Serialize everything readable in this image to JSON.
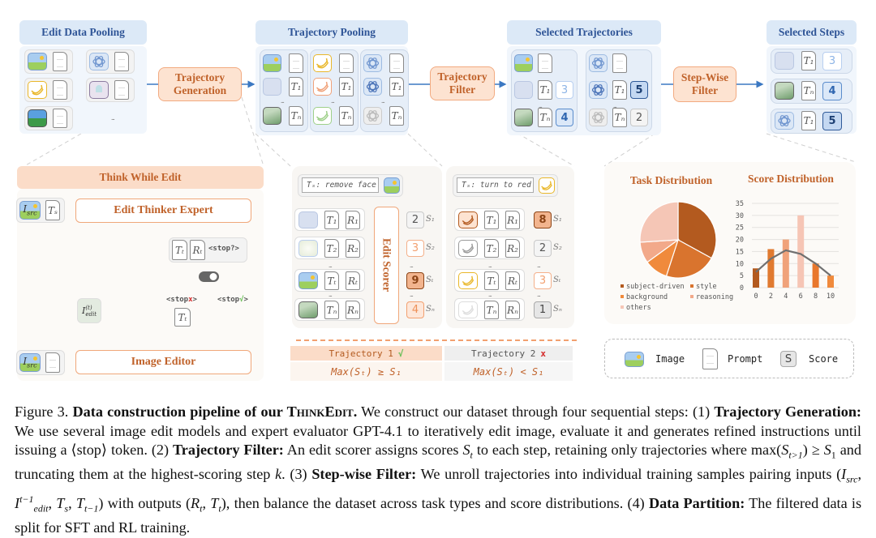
{
  "top": {
    "edit_data_pooling": {
      "title": "Edit Data Pooling",
      "ellipsis": "...",
      "items": [
        {
          "img": "landscape-face-icon",
          "doc": ""
        },
        {
          "img": "openai-icon",
          "doc": ""
        },
        {
          "img": "banana-yellow-icon",
          "doc": ""
        },
        {
          "img": "poster-icon",
          "doc": ""
        },
        {
          "img": "mountain-photo-icon",
          "doc": ""
        }
      ]
    },
    "trajectory_generation": "Trajectory Generation",
    "trajectory_pooling": {
      "title": "Trajectory Pooling",
      "ellipsis": "...",
      "columns": [
        {
          "imgs": [
            "landscape-face-icon",
            "landscape-faded-icon",
            "landscape-green-icon"
          ],
          "docs": [
            "",
            "T₁",
            "Tₙ"
          ]
        },
        {
          "imgs": [
            "banana-yellow-icon",
            "banana-orange-icon",
            "banana-green-icon"
          ],
          "docs": [
            "",
            "T₁",
            "Tₙ"
          ]
        },
        {
          "imgs": [
            "openai-icon",
            "openai-dark-icon",
            "openai-gray-icon"
          ],
          "docs": [
            "",
            "T₁",
            "Tₙ"
          ]
        }
      ]
    },
    "trajectory_filter": "Trajectory Filter",
    "selected_trajectories": {
      "title": "Selected Trajectories",
      "ellipsis": "...",
      "columns": [
        {
          "imgs": [
            "landscape-face-icon",
            "landscape-faded-icon",
            "landscape-green-icon"
          ],
          "docs": [
            "",
            "T₁",
            "Tₙ"
          ],
          "scores": [
            "",
            "3",
            "4"
          ],
          "styles": [
            "",
            "light",
            "medium"
          ]
        },
        {
          "imgs": [
            "openai-icon",
            "openai-dark-icon",
            "openai-gray-icon"
          ],
          "docs": [
            "",
            "T₁",
            "Tₙ"
          ],
          "scores": [
            "",
            "5",
            "2"
          ],
          "styles": [
            "",
            "dark",
            "gray"
          ]
        }
      ]
    },
    "step_wise_filter": "Step-Wise Filter",
    "selected_steps": {
      "title": "Selected Steps",
      "rows": [
        {
          "img": "landscape-faded-icon",
          "doc": "T₁",
          "score": "3",
          "style": "light"
        },
        {
          "img": "landscape-green-icon",
          "doc": "Tₙ",
          "score": "4",
          "style": "medium"
        },
        {
          "img": "openai-icon",
          "doc": "T₁",
          "score": "5",
          "style": "dark"
        }
      ]
    }
  },
  "think_while_edit": {
    "title": "Think While Edit",
    "expert": "Edit Thinker Expert",
    "editor": "Image Editor",
    "src": {
      "main": "I",
      "sub": "src"
    },
    "ts": "Tₛ",
    "tt": "Tₜ",
    "rt": "Rₜ",
    "stop_q": "<stop?>",
    "stop_no": {
      "pre": "<stop",
      "mark": "x",
      "post": ">"
    },
    "stop_yes": {
      "pre": "<stop",
      "mark": "√",
      "post": ">"
    },
    "iedit": {
      "main": "I",
      "sup": "(t)",
      "sub": "edit"
    }
  },
  "scorer": {
    "label": "Edit Scorer",
    "ellipsis": "...",
    "trajectories": [
      {
        "instruction": "Tₛ: remove face",
        "input_img": "landscape-face-icon",
        "imgs": [
          "landscape-faded-icon",
          "landscape-white-icon",
          "landscape-face-icon",
          "landscape-green-icon"
        ],
        "docs": [
          [
            "T₁",
            "R₁"
          ],
          [
            "T₂",
            "R₂"
          ],
          [
            "Tₜ",
            "Rₜ"
          ],
          [
            "Tₙ",
            "Rₙ"
          ]
        ],
        "scores": [
          "2",
          "3",
          "9",
          "4"
        ],
        "styles": [
          "gray",
          "lo",
          "do",
          "o"
        ],
        "score_labels": [
          "S₁",
          "S₂",
          "Sₜ",
          "Sₙ"
        ],
        "result": {
          "label": "Trajectory 1",
          "mark": "√",
          "mark_color": "#6cbf5a",
          "formula": "Max(Sₜ) ≥ S₁"
        }
      },
      {
        "instruction": "Tₛ: turn to red",
        "input_img": "banana-yellow-icon",
        "imgs": [
          "banana-dark-orange-icon",
          "banana-gray-icon",
          "banana-yellow-icon",
          "banana-faded-icon"
        ],
        "docs": [
          [
            "T₁",
            "R₁"
          ],
          [
            "T₂",
            "R₂"
          ],
          [
            "Tₜ",
            "Rₜ"
          ],
          [
            "Tₙ",
            "Rₙ"
          ]
        ],
        "scores": [
          "8",
          "2",
          "3",
          "1"
        ],
        "styles": [
          "do",
          "gray",
          "lo",
          "gd"
        ],
        "score_labels": [
          "S₁",
          "S₂",
          "Sₜ",
          "Sₙ"
        ],
        "result": {
          "label": "Trajectory 2",
          "mark": "x",
          "mark_color": "#d42a2a",
          "formula": "Max(Sₜ) < S₁"
        }
      }
    ]
  },
  "chart_data": [
    {
      "type": "pie",
      "title": "Task Distribution",
      "categories": [
        "subject-driven",
        "style",
        "background",
        "reasoning",
        "others"
      ],
      "values": [
        33,
        22,
        10,
        9,
        26
      ],
      "colors": [
        "#b35a1f",
        "#d9742e",
        "#f08a3c",
        "#f2a98a",
        "#f5c6b6"
      ],
      "legend": "bottom"
    },
    {
      "type": "bar",
      "title": "Score Distribution",
      "categories": [
        "0",
        "2",
        "4",
        "6",
        "8",
        "10"
      ],
      "values": [
        8,
        16,
        20,
        30,
        10,
        5
      ],
      "colors": [
        "#b35a1f",
        "#e07a30",
        "#f0a27a",
        "#f6c5b5",
        "#e9782d",
        "#f08a3c"
      ],
      "trend_line": [
        6.5,
        12,
        15.5,
        14,
        10,
        5
      ],
      "trend_color": "#707070",
      "yticks": [
        0,
        5,
        10,
        15,
        20,
        25,
        30,
        35
      ],
      "ylim": [
        0,
        35
      ],
      "grid": true
    }
  ],
  "legend": {
    "items": [
      {
        "icon": "image-icon",
        "label": "Image"
      },
      {
        "icon": "prompt-icon",
        "label": "Prompt"
      },
      {
        "icon": "score-icon",
        "symbol": "S",
        "label": "Score"
      }
    ]
  },
  "caption": [
    {
      "t": "Figure 3. "
    },
    {
      "t": "Data construction pipeline of our ",
      "b": true
    },
    {
      "t": "ThinkEdit",
      "b": true,
      "caps": true
    },
    {
      "t": ".",
      "b": true
    },
    {
      "t": " We construct our dataset through four sequential steps: (1) "
    },
    {
      "t": "Trajectory Generation:",
      "b": true
    },
    {
      "t": " We use several image edit models and expert evaluator GPT-4.1 to iteratively edit image, evaluate it and generates refined instructions until issuing a ⟨stop⟩ token. (2) "
    },
    {
      "t": "Trajectory Filter:",
      "b": true
    },
    {
      "t": " An edit scorer assigns scores "
    },
    {
      "t": "S",
      "i": true
    },
    {
      "t": "t",
      "i": true,
      "sub": true
    },
    {
      "t": " to each step, retaining only trajectories where max("
    },
    {
      "t": "S",
      "i": true
    },
    {
      "t": "t>1",
      "i": true,
      "sub": true
    },
    {
      "t": ") ≥ "
    },
    {
      "t": "S",
      "i": true
    },
    {
      "t": "1",
      "sub": true
    },
    {
      "t": " and truncating them at the highest-scoring step "
    },
    {
      "t": "k",
      "i": true
    },
    {
      "t": ". (3) "
    },
    {
      "t": "Step-wise Filter:",
      "b": true
    },
    {
      "t": " We unroll trajectories into individual training samples pairing inputs ("
    },
    {
      "t": "I",
      "i": true
    },
    {
      "t": "src",
      "i": true,
      "sub": true
    },
    {
      "t": ", "
    },
    {
      "t": "I",
      "i": true
    },
    {
      "t": "t−1",
      "i": true,
      "sup": true
    },
    {
      "t": "edit",
      "i": true,
      "sub": true
    },
    {
      "t": ", "
    },
    {
      "t": "T",
      "i": true
    },
    {
      "t": "s",
      "i": true,
      "sub": true
    },
    {
      "t": ", "
    },
    {
      "t": "T",
      "i": true
    },
    {
      "t": "t−1",
      "i": true,
      "sub": true
    },
    {
      "t": ") with outputs ("
    },
    {
      "t": "R",
      "i": true
    },
    {
      "t": "t",
      "i": true,
      "sub": true
    },
    {
      "t": ", "
    },
    {
      "t": "T",
      "i": true
    },
    {
      "t": "t",
      "i": true,
      "sub": true
    },
    {
      "t": "), then balance the dataset across task types and score distributions. (4) "
    },
    {
      "t": "Data Partition:",
      "b": true
    },
    {
      "t": " The filtered data is split for SFT and RL training."
    }
  ]
}
